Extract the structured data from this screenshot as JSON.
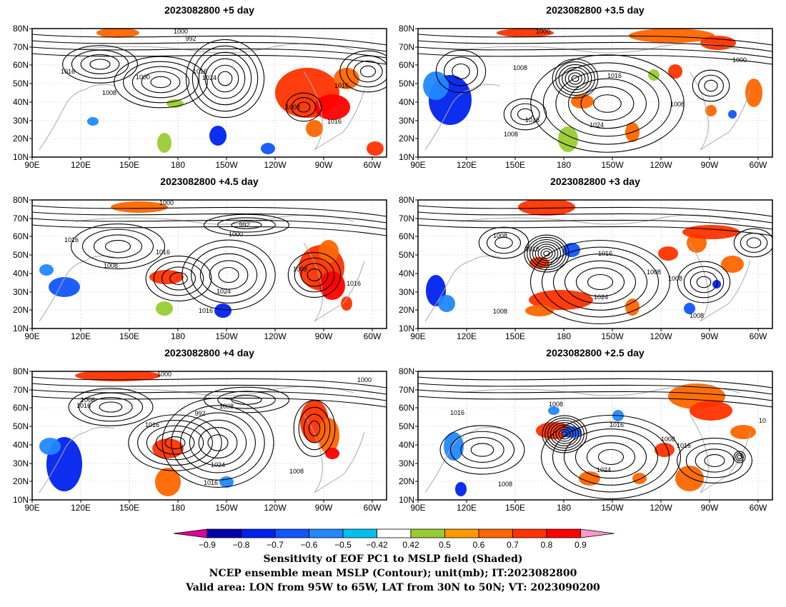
{
  "panels": [
    {
      "title": "2023082800  +5 day"
    },
    {
      "title": "2023082800  +3.5 day"
    },
    {
      "title": "2023082800  +4.5 day"
    },
    {
      "title": "2023082800  +3 day"
    },
    {
      "title": "2023082800  +4 day"
    },
    {
      "title": "2023082800  +2.5 day"
    }
  ],
  "axes": {
    "lat_ticks": [
      "10N",
      "20N",
      "30N",
      "40N",
      "50N",
      "60N",
      "70N",
      "80N"
    ],
    "lon_ticks": [
      "90E",
      "120E",
      "150E",
      "180",
      "150W",
      "120W",
      "90W",
      "60W"
    ]
  },
  "contour_labels": [
    [
      "1000",
      "992",
      "1016",
      "1000",
      "1008",
      "1016",
      "1024",
      "1016",
      "1008",
      "1016"
    ],
    [
      "1000",
      "1008",
      "1016",
      "1000",
      "1008",
      "1016",
      "1024",
      "1008"
    ],
    [
      "1000",
      "992",
      "1000",
      "1016",
      "1016",
      "1008",
      "1024",
      "1016",
      "1008",
      "1016"
    ],
    [
      "1008",
      "1016",
      "1016",
      "1008",
      "1008",
      "1024",
      "1008",
      "1008"
    ],
    [
      "1000",
      "1008",
      "992",
      "1008",
      "1016",
      "1016",
      "1024",
      "1016",
      "1008",
      "1000"
    ],
    [
      "1008",
      "1016",
      "1016",
      "1008",
      "1016",
      "1024",
      "1008",
      "10"
    ]
  ],
  "colorbar": {
    "labels": [
      "−0.9",
      "−0.8",
      "−0.7",
      "−0.6",
      "−0.5",
      "−0.42",
      "0.42",
      "0.5",
      "0.6",
      "0.7",
      "0.8",
      "0.9"
    ],
    "colors": [
      "#dd0099",
      "#0000aa",
      "#0022ee",
      "#1155ff",
      "#2288ff",
      "#00c0f0",
      "#ffffff",
      "#99cc33",
      "#ff9900",
      "#ff6600",
      "#ff3300",
      "#ff0000",
      "#ff99cc"
    ]
  },
  "footer": {
    "line1": "Sensitivity of EOF PC1 to MSLP field (Shaded)",
    "line2": "NCEP ensemble mean MSLP (Contour); unit(mb); IT:2023082800",
    "line3": "Valid area: LON from 95W to 65W, LAT from 30N to 50N; VT: 2023090200"
  }
}
